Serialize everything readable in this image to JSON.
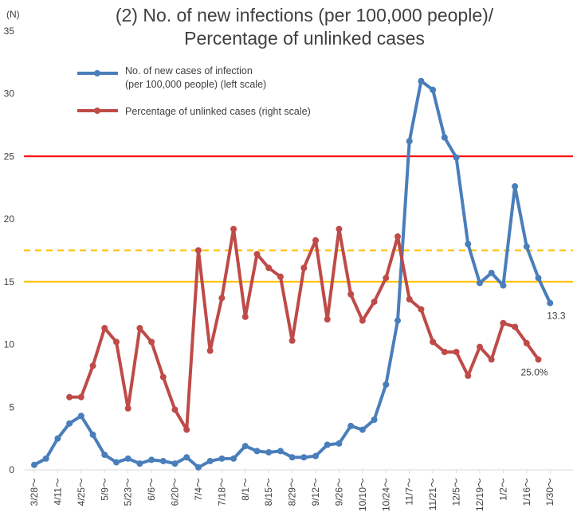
{
  "chart_data": {
    "type": "line",
    "title_line1": "(2) No. of new infections (per 100,000 people)/",
    "title_line2": "Percentage of unlinked cases",
    "y_unit": "(N)",
    "ylim": [
      0,
      35
    ],
    "y_ticks": [
      "0",
      "5",
      "10",
      "15",
      "20",
      "25",
      "30",
      "35"
    ],
    "x_ticks": [
      "3/28～",
      "4/11～",
      "4/25～",
      "5/9～",
      "5/23～",
      "6/6～",
      "6/20～",
      "7/4～",
      "7/18～",
      "8/1～",
      "8/15～",
      "8/29～",
      "9/12～",
      "9/26～",
      "10/10～",
      "10/24～",
      "11/7～",
      "11/21～",
      "12/5～",
      "12/19～",
      "1/2～",
      "1/16～",
      "1/30～"
    ],
    "x_count": 45,
    "grid": false,
    "legend_position": "top-left",
    "series": [
      {
        "name_line1": "No. of new cases of infection",
        "name_line2": "(per 100,000 people) (left scale)",
        "color": "#4a7ebb",
        "start_index": 0,
        "values": [
          0.4,
          0.9,
          2.5,
          3.7,
          4.3,
          2.8,
          1.2,
          0.6,
          0.9,
          0.5,
          0.8,
          0.7,
          0.5,
          1.0,
          0.2,
          0.7,
          0.9,
          0.9,
          1.9,
          1.5,
          1.4,
          1.5,
          1.0,
          1.0,
          1.1,
          2.0,
          2.1,
          3.5,
          3.2,
          4.0,
          6.8,
          11.9,
          26.2,
          31.0,
          30.3,
          26.5,
          24.9,
          18.0,
          14.9,
          15.7,
          14.7,
          22.6,
          17.8,
          15.3,
          13.3
        ]
      },
      {
        "name": "Percentage of unlinked cases (right scale)",
        "color": "#be4b48",
        "start_index": 3,
        "values": [
          5.8,
          5.8,
          8.3,
          11.3,
          10.2,
          4.9,
          11.3,
          10.2,
          7.4,
          4.8,
          3.2,
          17.5,
          9.5,
          13.7,
          19.2,
          12.2,
          17.2,
          16.1,
          15.4,
          10.3,
          16.1,
          18.3,
          12.0,
          19.2,
          14.0,
          11.9,
          13.4,
          15.3,
          18.6,
          13.6,
          12.8,
          10.2,
          9.4,
          9.4,
          7.5,
          9.8,
          8.8,
          11.7,
          11.4,
          10.1,
          8.8
        ]
      }
    ],
    "reference_lines": [
      {
        "value": 25,
        "color": "#ff0000",
        "style": "solid"
      },
      {
        "value": 17.5,
        "color": "#ffc000",
        "style": "dashed"
      },
      {
        "value": 15,
        "color": "#ffc000",
        "style": "solid"
      }
    ],
    "annotations": [
      {
        "text": "13.3",
        "series": 0,
        "index": 44
      },
      {
        "text": "25.0%",
        "series": 1,
        "index": 43
      }
    ]
  }
}
